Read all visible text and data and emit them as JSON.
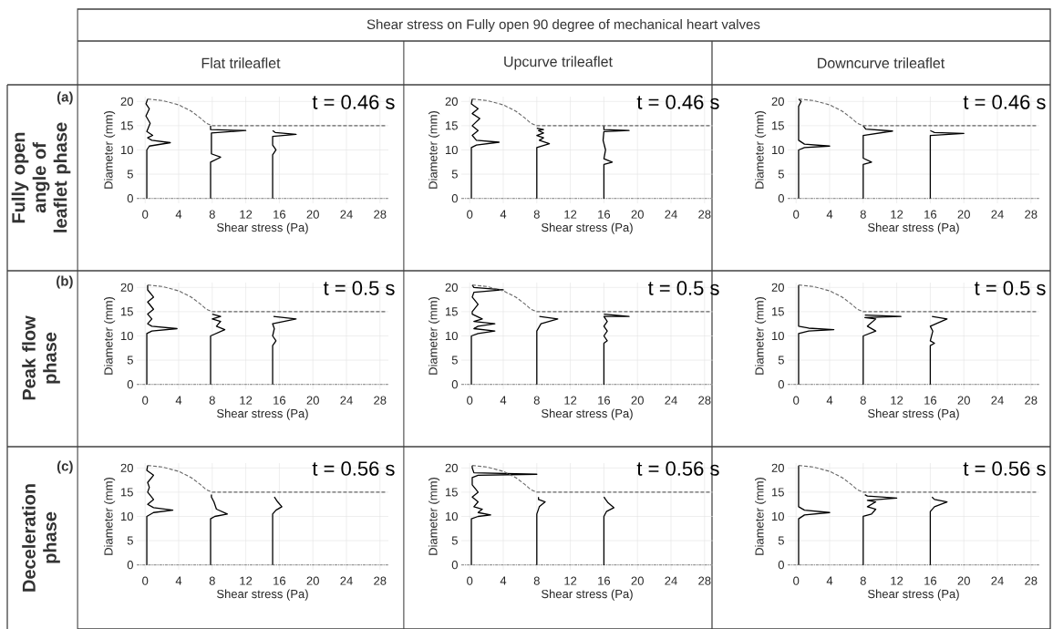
{
  "chart_data": [
    {
      "type": "line",
      "title": "Flat trileaflet",
      "xlabel": "Shear stress (Pa)",
      "ylabel": "Diameter (mm)",
      "annotations": [
        "Shear stress on Fully open 90 degree of mechanical heart valves",
        "(a)",
        "Fully open angle of leaflet phase",
        "t = 0.46 s"
      ],
      "xlim": [
        -1,
        29
      ],
      "ylim": [
        -1,
        21
      ],
      "xticks": [
        0,
        4,
        8,
        12,
        16,
        20,
        24,
        28
      ],
      "yticks": [
        0,
        5,
        10,
        15,
        20
      ],
      "grid": true,
      "marker": "none",
      "ref_lines": [
        {
          "axis": "y",
          "value": 0,
          "color": "#999999",
          "line_style": "dotted"
        }
      ],
      "series": [
        {
          "color": "#000000",
          "line_style": "solid",
          "x": [
            0.2,
            0.2,
            0.5,
            3,
            0.8,
            0.3,
            0.9,
            0.2,
            0.6,
            0.1,
            0.5,
            0.1,
            0.3
          ],
          "values": [
            0,
            10,
            10.8,
            11.5,
            12,
            12.5,
            13,
            13.8,
            15.5,
            17,
            18.5,
            19.5,
            20.5
          ]
        },
        {
          "color": "#000000",
          "line_style": "solid",
          "x": [
            7.8,
            7.8,
            9,
            7.9,
            7.9,
            12,
            7.8,
            7.8
          ],
          "values": [
            0,
            7.5,
            8.5,
            9.2,
            13.5,
            14,
            14.2,
            15
          ]
        },
        {
          "color": "#000000",
          "line_style": "solid",
          "x": [
            15.2,
            15.2,
            15.6,
            15.2,
            15.2,
            18,
            15.5,
            15.2
          ],
          "values": [
            0,
            9,
            10,
            11,
            12.8,
            13.2,
            13.6,
            14
          ]
        },
        {
          "color": "#666666",
          "line_style": "dashed",
          "x": [
            0.3,
            2,
            4,
            5.5,
            6.5,
            7.3,
            8,
            28.8
          ],
          "values": [
            20.5,
            20.2,
            19.3,
            18,
            16.7,
            15.5,
            15,
            15
          ]
        }
      ]
    },
    {
      "type": "line",
      "title": "Upcurve trileaflet",
      "xlabel": "Shear stress (Pa)",
      "ylabel": "Diameter (mm)",
      "annotations": [
        "t = 0.46 s"
      ],
      "xlim": [
        -1,
        29
      ],
      "ylim": [
        -1,
        21
      ],
      "xticks": [
        0,
        4,
        8,
        12,
        16,
        20,
        24,
        28
      ],
      "yticks": [
        0,
        5,
        10,
        15,
        20
      ],
      "grid": true,
      "marker": "none",
      "ref_lines": [
        {
          "axis": "y",
          "value": 0,
          "color": "#999999",
          "line_style": "dotted"
        }
      ],
      "series": [
        {
          "color": "#000000",
          "line_style": "solid",
          "x": [
            0.2,
            0.2,
            0.8,
            3.5,
            0.8,
            0.3,
            1,
            0.3,
            1.2,
            0.3,
            1,
            0.2,
            0.3
          ],
          "values": [
            0,
            10.5,
            11,
            11.6,
            12,
            13,
            14,
            15,
            16.5,
            17.5,
            18.5,
            19.5,
            20.5
          ]
        },
        {
          "color": "#000000",
          "line_style": "solid",
          "x": [
            8,
            8,
            9.5,
            8.3,
            8.8,
            8,
            8.8,
            8.2,
            8.8,
            8
          ],
          "values": [
            0,
            10.5,
            11.3,
            12,
            12.5,
            13,
            13.5,
            14,
            14.2,
            14.5
          ]
        },
        {
          "color": "#000000",
          "line_style": "solid",
          "x": [
            16,
            16,
            17,
            16,
            16.2,
            15.9,
            16,
            19,
            16,
            16
          ],
          "values": [
            0,
            7,
            7.5,
            8.2,
            10,
            12,
            13.8,
            14,
            14.2,
            15
          ]
        },
        {
          "color": "#666666",
          "line_style": "dashed",
          "x": [
            0.3,
            2,
            4,
            5.5,
            6.5,
            7.3,
            8,
            28.8
          ],
          "values": [
            20.5,
            20.2,
            19.3,
            18,
            16.7,
            15.5,
            15,
            15
          ]
        }
      ]
    },
    {
      "type": "line",
      "title": "Downcurve trileaflet",
      "xlabel": "Shear stress (Pa)",
      "ylabel": "Diameter (mm)",
      "annotations": [
        "t = 0.46 s"
      ],
      "xlim": [
        -1,
        29
      ],
      "ylim": [
        -1,
        21
      ],
      "xticks": [
        0,
        4,
        8,
        12,
        16,
        20,
        24,
        28
      ],
      "yticks": [
        0,
        5,
        10,
        15,
        20
      ],
      "grid": true,
      "marker": "none",
      "ref_lines": [
        {
          "axis": "y",
          "value": 0,
          "color": "#999999",
          "line_style": "dotted"
        }
      ],
      "series": [
        {
          "color": "#000000",
          "line_style": "solid",
          "x": [
            0.3,
            0.3,
            1,
            4,
            1,
            0.3,
            0.3,
            0.6,
            0.3
          ],
          "values": [
            0,
            10,
            10.5,
            10.8,
            11.2,
            12,
            19,
            20,
            20.5
          ]
        },
        {
          "color": "#000000",
          "line_style": "solid",
          "x": [
            8,
            8,
            9,
            8,
            8,
            11.5,
            8.3,
            8
          ],
          "values": [
            0,
            7,
            7.5,
            8.3,
            13,
            13.9,
            14.3,
            15
          ]
        },
        {
          "color": "#000000",
          "line_style": "solid",
          "x": [
            16,
            16,
            20,
            16.5,
            16
          ],
          "values": [
            0,
            13,
            13.4,
            13.6,
            14
          ]
        },
        {
          "color": "#666666",
          "line_style": "dashed",
          "x": [
            0.3,
            2,
            4,
            5.5,
            6.5,
            7.3,
            8,
            28.8
          ],
          "values": [
            20.5,
            20.2,
            19.3,
            18,
            16.7,
            15.5,
            15,
            15
          ]
        }
      ]
    },
    {
      "type": "line",
      "xlabel": "Shear stress (Pa)",
      "ylabel": "Diameter (mm)",
      "annotations": [
        "(b)",
        "Peak flow phase",
        "t = 0.5 s"
      ],
      "xlim": [
        -1,
        29
      ],
      "ylim": [
        -1,
        21
      ],
      "xticks": [
        0,
        4,
        8,
        12,
        16,
        20,
        24,
        28
      ],
      "yticks": [
        0,
        5,
        10,
        15,
        20
      ],
      "grid": true,
      "marker": "none",
      "ref_lines": [
        {
          "axis": "y",
          "value": 0,
          "color": "#999999",
          "line_style": "dotted"
        }
      ],
      "series": [
        {
          "color": "#000000",
          "line_style": "solid",
          "x": [
            0.2,
            0.2,
            0.8,
            3.8,
            0.8,
            0.3,
            0.8,
            0.3,
            1,
            0.3,
            1,
            0.3,
            0.3
          ],
          "values": [
            0,
            10.5,
            11,
            11.5,
            12,
            12.5,
            13.5,
            14.5,
            15.5,
            17,
            18,
            19.5,
            20.5
          ]
        },
        {
          "color": "#000000",
          "line_style": "solid",
          "x": [
            7.8,
            7.8,
            9.5,
            8.5,
            9,
            8,
            9,
            8
          ],
          "values": [
            0,
            10,
            11.3,
            12,
            13,
            13.5,
            14,
            14.5
          ]
        },
        {
          "color": "#000000",
          "line_style": "solid",
          "x": [
            15.2,
            15.2,
            15.6,
            15.2,
            15.4,
            15.2,
            18,
            15.3
          ],
          "values": [
            0,
            8,
            9,
            10,
            11.5,
            12.5,
            13.5,
            14
          ]
        },
        {
          "color": "#666666",
          "line_style": "dashed",
          "x": [
            0.3,
            2,
            4,
            5.5,
            6.5,
            7.3,
            8,
            28.8
          ],
          "values": [
            20.5,
            20.2,
            19.3,
            18,
            16.7,
            15.5,
            15,
            15
          ]
        }
      ]
    },
    {
      "type": "line",
      "xlabel": "Shear stress (Pa)",
      "ylabel": "Diameter (mm)",
      "annotations": [
        "t = 0.5 s"
      ],
      "xlim": [
        -1,
        29
      ],
      "ylim": [
        -1,
        21
      ],
      "xticks": [
        0,
        4,
        8,
        12,
        16,
        20,
        24,
        28
      ],
      "yticks": [
        0,
        5,
        10,
        15,
        20
      ],
      "grid": true,
      "marker": "none",
      "ref_lines": [
        {
          "axis": "y",
          "value": 0,
          "color": "#999999",
          "line_style": "dotted"
        }
      ],
      "series": [
        {
          "color": "#000000",
          "line_style": "solid",
          "x": [
            0.2,
            0.2,
            1,
            3,
            0.5,
            1,
            3,
            0.5,
            1.5,
            0.3,
            0.3,
            1,
            0.3,
            0.5,
            4,
            0.5,
            0.3
          ],
          "values": [
            0,
            10,
            10.5,
            11,
            11.5,
            12,
            12.5,
            13,
            13.5,
            14.5,
            15,
            16.5,
            18,
            19,
            19.5,
            20,
            20.5
          ]
        },
        {
          "color": "#000000",
          "line_style": "solid",
          "x": [
            8,
            8,
            8.5,
            10.5,
            8.3
          ],
          "values": [
            0,
            11,
            12.5,
            13.5,
            14
          ]
        },
        {
          "color": "#000000",
          "line_style": "solid",
          "x": [
            16,
            16,
            16.4,
            16,
            16.4,
            16,
            16.4,
            16,
            19,
            16
          ],
          "values": [
            0,
            8.5,
            9,
            10,
            11,
            12,
            13,
            14,
            14,
            14.5
          ]
        },
        {
          "color": "#666666",
          "line_style": "dashed",
          "x": [
            0.3,
            2,
            4,
            5.5,
            6.5,
            7.3,
            8,
            28.8
          ],
          "values": [
            20.5,
            20.2,
            19.3,
            18,
            16.7,
            15.5,
            15,
            15
          ]
        }
      ]
    },
    {
      "type": "line",
      "xlabel": "Shear stress (Pa)",
      "ylabel": "Diameter (mm)",
      "annotations": [
        "t = 0.5 s"
      ],
      "xlim": [
        -1,
        29
      ],
      "ylim": [
        -1,
        21
      ],
      "xticks": [
        0,
        4,
        8,
        12,
        16,
        20,
        24,
        28
      ],
      "yticks": [
        0,
        5,
        10,
        15,
        20
      ],
      "grid": true,
      "marker": "none",
      "ref_lines": [
        {
          "axis": "y",
          "value": 0,
          "color": "#999999",
          "line_style": "dotted"
        }
      ],
      "series": [
        {
          "color": "#000000",
          "line_style": "solid",
          "x": [
            0.3,
            0.3,
            1.5,
            4.5,
            1.5,
            0.3,
            0.3
          ],
          "values": [
            0,
            10.5,
            11,
            11.3,
            11.6,
            12,
            20.5
          ]
        },
        {
          "color": "#000000",
          "line_style": "solid",
          "x": [
            8,
            8,
            9.5,
            8.5,
            9.5,
            8.2,
            12.5,
            8.2
          ],
          "values": [
            0,
            10,
            11,
            12,
            13.5,
            13.8,
            14,
            14.3
          ]
        },
        {
          "color": "#000000",
          "line_style": "solid",
          "x": [
            16,
            16,
            16.5,
            16,
            16.3,
            16,
            18,
            16.2
          ],
          "values": [
            0,
            8,
            8.5,
            9,
            11,
            12,
            13.5,
            14
          ]
        },
        {
          "color": "#666666",
          "line_style": "dashed",
          "x": [
            0.3,
            2,
            4,
            5.5,
            6.5,
            7.3,
            8,
            28.8
          ],
          "values": [
            20.5,
            20.2,
            19.3,
            18,
            16.7,
            15.5,
            15,
            15
          ]
        }
      ]
    },
    {
      "type": "line",
      "xlabel": "Shear stress (Pa)",
      "ylabel": "Diameter (mm)",
      "annotations": [
        "(c)",
        "Deceleration phase",
        "t = 0.56 s"
      ],
      "xlim": [
        -1,
        29
      ],
      "ylim": [
        -1,
        21
      ],
      "xticks": [
        0,
        4,
        8,
        12,
        16,
        20,
        24,
        28
      ],
      "yticks": [
        0,
        5,
        10,
        15,
        20
      ],
      "grid": true,
      "marker": "none",
      "ref_lines": [
        {
          "axis": "y",
          "value": 0,
          "color": "#999999",
          "line_style": "dotted"
        }
      ],
      "series": [
        {
          "color": "#000000",
          "line_style": "solid",
          "x": [
            0.2,
            0.2,
            1,
            3.3,
            1,
            0.3,
            1,
            0.3,
            0.5,
            0.3,
            1,
            0.2,
            0.3
          ],
          "values": [
            0,
            10,
            10.8,
            11.3,
            11.8,
            12.5,
            13.5,
            15,
            16,
            17,
            18.5,
            19.5,
            20.5
          ]
        },
        {
          "color": "#000000",
          "line_style": "solid",
          "x": [
            7.8,
            7.8,
            8.3,
            9.8,
            8.5,
            8.2,
            7.9,
            7.9
          ],
          "values": [
            0,
            9.5,
            10,
            10.5,
            11.5,
            13,
            14,
            14.5
          ]
        },
        {
          "color": "#000000",
          "line_style": "solid",
          "x": [
            15.2,
            15.2,
            15.6,
            16.3,
            15.8,
            15.4
          ],
          "values": [
            0,
            10.5,
            11.3,
            12,
            13,
            14
          ]
        },
        {
          "color": "#666666",
          "line_style": "dashed",
          "x": [
            0.3,
            2,
            4,
            5.5,
            6.5,
            7.3,
            8,
            28.8
          ],
          "values": [
            20.5,
            20.2,
            19.3,
            18,
            16.7,
            15.5,
            15,
            15
          ]
        }
      ]
    },
    {
      "type": "line",
      "xlabel": "Shear stress (Pa)",
      "ylabel": "Diameter (mm)",
      "annotations": [
        "t = 0.56 s"
      ],
      "xlim": [
        -1,
        29
      ],
      "ylim": [
        -1,
        21
      ],
      "xticks": [
        0,
        4,
        8,
        12,
        16,
        20,
        24,
        28
      ],
      "yticks": [
        0,
        5,
        10,
        15,
        20
      ],
      "grid": true,
      "marker": "none",
      "ref_lines": [
        {
          "axis": "y",
          "value": 0,
          "color": "#999999",
          "line_style": "dotted"
        }
      ],
      "series": [
        {
          "color": "#000000",
          "line_style": "solid",
          "x": [
            0.2,
            0.2,
            1,
            2.5,
            1,
            1.5,
            0.5,
            1,
            0.3,
            1,
            0.3,
            0.3,
            1,
            8,
            0.5,
            0.3,
            0.3
          ],
          "values": [
            0,
            9.5,
            10,
            10.3,
            10.8,
            11.5,
            12,
            13,
            14,
            15,
            16.5,
            18,
            18.5,
            18.7,
            19,
            20,
            20.5
          ]
        },
        {
          "color": "#000000",
          "line_style": "solid",
          "x": [
            8,
            8,
            8.3,
            9,
            8.2,
            8.2
          ],
          "values": [
            0,
            10.5,
            12,
            13,
            13.5,
            14
          ]
        },
        {
          "color": "#000000",
          "line_style": "solid",
          "x": [
            16,
            16,
            16.3,
            17.2,
            16.5,
            16.2,
            16
          ],
          "values": [
            0,
            10,
            11,
            11.8,
            12.8,
            13.5,
            14
          ]
        },
        {
          "color": "#666666",
          "line_style": "dashed",
          "x": [
            0.3,
            2,
            4,
            5.5,
            6.5,
            7.3,
            8,
            28.8
          ],
          "values": [
            20.5,
            20.2,
            19.3,
            18,
            16.7,
            15.5,
            15,
            15
          ]
        }
      ]
    },
    {
      "type": "line",
      "xlabel": "Shear stress (Pa)",
      "ylabel": "Diameter (mm)",
      "annotations": [
        "t = 0.56 s"
      ],
      "xlim": [
        -1,
        29
      ],
      "ylim": [
        -1,
        21
      ],
      "xticks": [
        0,
        4,
        8,
        12,
        16,
        20,
        24,
        28
      ],
      "yticks": [
        0,
        5,
        10,
        15,
        20
      ],
      "grid": true,
      "marker": "none",
      "ref_lines": [
        {
          "axis": "y",
          "value": 0,
          "color": "#999999",
          "line_style": "dotted"
        }
      ],
      "series": [
        {
          "color": "#000000",
          "line_style": "solid",
          "x": [
            0.3,
            0.3,
            1,
            4,
            1,
            0.3,
            0.3
          ],
          "values": [
            0,
            9.5,
            10.3,
            10.8,
            11.3,
            12,
            20.5
          ]
        },
        {
          "color": "#000000",
          "line_style": "solid",
          "x": [
            8,
            8,
            9,
            9.5,
            8.5,
            9.5,
            8.5,
            12,
            8.5,
            8.2
          ],
          "values": [
            0,
            10,
            10.5,
            11.5,
            12,
            13,
            13.3,
            13.8,
            14.2,
            14.5
          ]
        },
        {
          "color": "#000000",
          "line_style": "solid",
          "x": [
            16,
            16,
            16.5,
            18,
            16.5,
            16.2
          ],
          "values": [
            0,
            11,
            12,
            13,
            13.5,
            14
          ]
        },
        {
          "color": "#666666",
          "line_style": "dashed",
          "x": [
            0.3,
            2,
            4,
            5.5,
            6.5,
            7.3,
            8,
            28.8
          ],
          "values": [
            20.5,
            20.2,
            19.3,
            18,
            16.7,
            15.5,
            15,
            15
          ]
        }
      ]
    }
  ]
}
